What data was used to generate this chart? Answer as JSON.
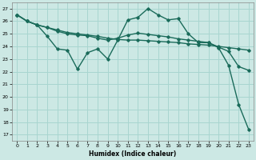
{
  "xlabel": "Humidex (Indice chaleur)",
  "bg_color": "#cce8e4",
  "grid_color": "#a8d5d0",
  "line_color": "#1a6b5a",
  "x_ticks": [
    0,
    1,
    2,
    3,
    4,
    5,
    6,
    7,
    8,
    9,
    10,
    11,
    12,
    13,
    14,
    15,
    16,
    17,
    18,
    19,
    20,
    21,
    22,
    23
  ],
  "y_ticks": [
    17,
    18,
    19,
    20,
    21,
    22,
    23,
    24,
    25,
    26,
    27
  ],
  "xlim": [
    -0.5,
    23.5
  ],
  "ylim": [
    16.5,
    27.5
  ],
  "series": [
    {
      "x": [
        0,
        1,
        2,
        3,
        4,
        5,
        6,
        7,
        8,
        9,
        10,
        11,
        12,
        13,
        14,
        15,
        16,
        17,
        18,
        19,
        20,
        21,
        22,
        23
      ],
      "y": [
        26.5,
        26.0,
        25.7,
        25.5,
        25.3,
        25.1,
        25.0,
        24.9,
        24.8,
        24.65,
        24.55,
        24.5,
        24.5,
        24.45,
        24.4,
        24.35,
        24.3,
        24.2,
        24.15,
        24.1,
        24.0,
        23.9,
        23.8,
        23.7
      ],
      "marker": "D",
      "markersize": 1.8,
      "linewidth": 1.0
    },
    {
      "x": [
        0,
        1,
        2,
        3,
        4,
        5,
        6,
        7,
        8,
        9,
        10,
        11,
        12,
        13,
        14,
        15,
        16,
        17,
        18,
        19,
        20,
        21,
        22,
        23
      ],
      "y": [
        26.5,
        26.0,
        25.7,
        25.5,
        25.2,
        25.0,
        24.9,
        24.85,
        24.65,
        24.5,
        24.65,
        24.9,
        25.05,
        24.95,
        24.85,
        24.75,
        24.6,
        24.5,
        24.4,
        24.3,
        23.95,
        23.6,
        22.4,
        22.1
      ],
      "marker": "D",
      "markersize": 1.8,
      "linewidth": 1.0
    },
    {
      "x": [
        0,
        1,
        2,
        3,
        4,
        5,
        6,
        7,
        8,
        9,
        10,
        11,
        12,
        13,
        14,
        15,
        16,
        17,
        18,
        19,
        20,
        21,
        22,
        23
      ],
      "y": [
        26.5,
        26.0,
        25.7,
        24.8,
        23.8,
        23.7,
        22.2,
        23.5,
        23.8,
        23.0,
        24.5,
        26.1,
        26.3,
        27.0,
        26.5,
        26.1,
        26.2,
        25.0,
        24.3,
        24.3,
        23.9,
        22.5,
        19.4,
        17.4
      ],
      "marker": "D",
      "markersize": 1.8,
      "linewidth": 1.0
    }
  ]
}
